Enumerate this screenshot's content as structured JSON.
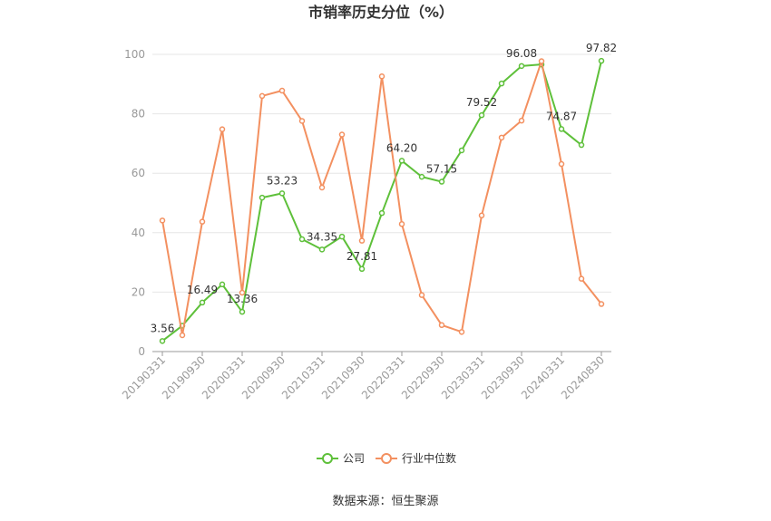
{
  "source": "数据来源：恒生聚源",
  "chart_data": {
    "type": "line",
    "title": "市销率历史分位（%）",
    "x_tick_labels": [
      "20190331",
      "20190930",
      "20200331",
      "20200930",
      "20210331",
      "20210930",
      "20220331",
      "20220930",
      "20230331",
      "20230930",
      "20240331",
      "20240830"
    ],
    "ylim": [
      0,
      100
    ],
    "y_ticks": [
      0,
      20,
      40,
      60,
      80,
      100
    ],
    "grid": true,
    "legend": "bottom-center",
    "series": [
      {
        "name": "公司",
        "color": "#5ec03a",
        "values": [
          3.56,
          8.7,
          16.49,
          22.6,
          13.36,
          51.8,
          53.23,
          37.8,
          34.35,
          38.7,
          27.81,
          46.6,
          64.2,
          58.8,
          57.15,
          67.7,
          79.52,
          90.2,
          96.08,
          96.6,
          74.87,
          69.5,
          97.82
        ],
        "labels": [
          "3.56",
          null,
          "16.49",
          null,
          "13.36",
          null,
          "53.23",
          null,
          "34.35",
          null,
          "27.81",
          null,
          "64.20",
          null,
          "57.15",
          null,
          "79.52",
          null,
          "96.08",
          null,
          "74.87",
          null,
          "97.82"
        ]
      },
      {
        "name": "行业中位数",
        "color": "#f39060",
        "values": [
          44.1,
          5.5,
          43.7,
          74.8,
          19.8,
          86.0,
          87.8,
          77.6,
          55.2,
          73.0,
          37.3,
          92.6,
          42.9,
          19.0,
          8.9,
          6.6,
          45.8,
          72.0,
          77.7,
          97.7,
          63.1,
          24.5,
          16.0
        ]
      }
    ]
  }
}
